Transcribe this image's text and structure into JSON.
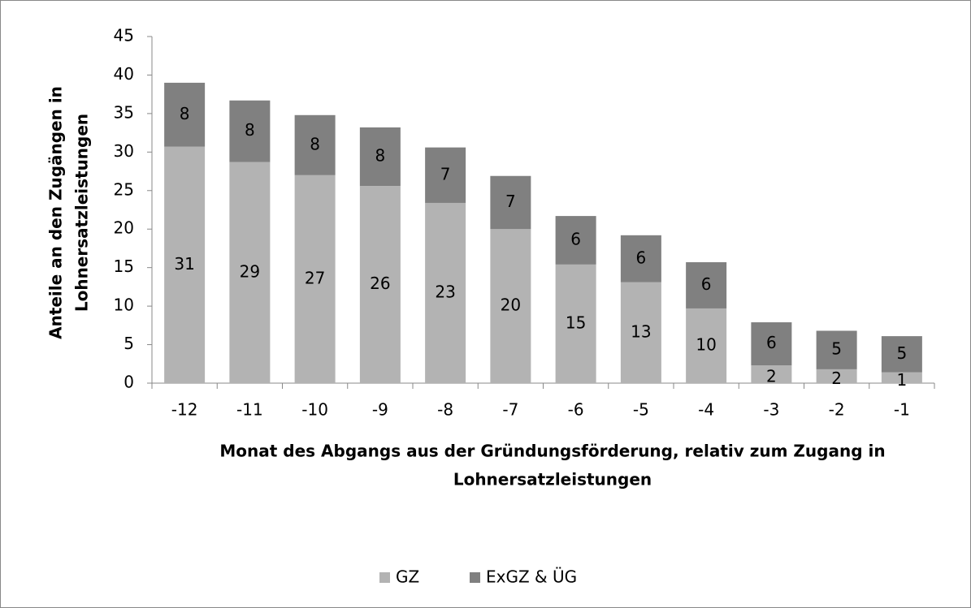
{
  "chart_data": {
    "type": "stacked_bar",
    "categories": [
      "-12",
      "-11",
      "-10",
      "-9",
      "-8",
      "-7",
      "-6",
      "-5",
      "-4",
      "-3",
      "-2",
      "-1"
    ],
    "series": [
      {
        "name": "GZ",
        "color": "#b3b3b3",
        "values": [
          30.7,
          28.7,
          27.0,
          25.6,
          23.4,
          20.0,
          15.4,
          13.1,
          9.7,
          2.3,
          1.8,
          1.4
        ],
        "value_labels": [
          "31",
          "29",
          "27",
          "26",
          "23",
          "20",
          "15",
          "13",
          "10",
          "2",
          "2",
          "1"
        ]
      },
      {
        "name": "ExGZ & ÜG",
        "color": "#808080",
        "values": [
          8.3,
          8.0,
          7.8,
          7.6,
          7.2,
          6.9,
          6.3,
          6.1,
          6.0,
          5.6,
          5.0,
          4.7
        ],
        "value_labels": [
          "8",
          "8",
          "8",
          "8",
          "7",
          "7",
          "6",
          "6",
          "6",
          "6",
          "5",
          "5"
        ]
      }
    ],
    "y_label": [
      "Anteile an den Zugängen in",
      "Lohnersatzleistungen"
    ],
    "x_label": [
      "Monat des Abgangs aus der Gründungsförderung, relativ zum Zugang in",
      "Lohnersatzleistungen"
    ],
    "ylim": [
      0,
      45
    ],
    "yticks": [
      0,
      5,
      10,
      15,
      20,
      25,
      30,
      35,
      40,
      45
    ],
    "legend": "bottom"
  }
}
